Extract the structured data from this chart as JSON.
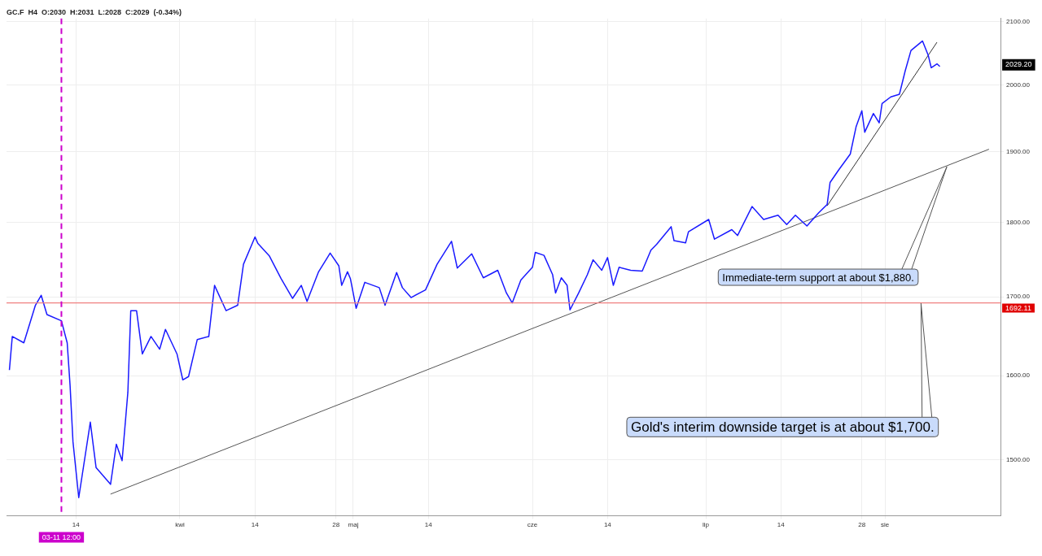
{
  "chart_data": {
    "type": "line",
    "title": "GC.F  H4  O:2030  H:2031  L:2028  C:2029  (-0.34%)",
    "xlim": [
      "--03-02",
      "--08-21"
    ],
    "xticks": [
      {
        "value": "--03-14",
        "label": "14"
      },
      {
        "value": "--04-01",
        "label": "kwi"
      },
      {
        "value": "--04-14",
        "label": "14"
      },
      {
        "value": "--04-28",
        "label": "28"
      },
      {
        "value": "--05-01",
        "label": "maj"
      },
      {
        "value": "--05-14",
        "label": "14"
      },
      {
        "value": "--06-01",
        "label": "cze"
      },
      {
        "value": "--06-14",
        "label": "14"
      },
      {
        "value": "--07-01",
        "label": "lip"
      },
      {
        "value": "--07-14",
        "label": "14"
      },
      {
        "value": "--07-28",
        "label": "28"
      },
      {
        "value": "--08-01",
        "label": "sie"
      }
    ],
    "ylim": [
      1437,
      2105
    ],
    "log": true,
    "yticks": [
      {
        "value": 1500,
        "label": "1500.00"
      },
      {
        "value": 1600,
        "label": "1600.00"
      },
      {
        "value": 1700,
        "label": "1700.00"
      },
      {
        "value": 1800,
        "label": "1800.00"
      },
      {
        "value": 1900,
        "label": "1900.00"
      },
      {
        "value": 2000,
        "label": "2000.00"
      },
      {
        "value": 2100,
        "label": "2100.00"
      }
    ],
    "grid": true,
    "legend": false,
    "marker": "none",
    "line_style": "solid",
    "series": [
      {
        "color": "#1a1aff",
        "x": [
          "--03-02T12:00",
          "--03-03",
          "--03-05",
          "--03-07",
          "--03-08",
          "--03-09",
          "--03-11T12:00",
          "--03-12T12:00",
          "--03-13",
          "--03-13T12:00",
          "--03-14T12:00",
          "--03-16T12:00",
          "--03-17T12:00",
          "--03-20",
          "--03-21",
          "--03-22",
          "--03-23",
          "--03-23T12:00",
          "--03-24T12:00",
          "--03-25T12:00",
          "--03-27",
          "--03-28T12:00",
          "--03-29T12:00",
          "--03-31T12:00",
          "--04-01T12:00",
          "--04-02T12:00",
          "--04-04",
          "--04-06",
          "--04-07",
          "--04-09",
          "--04-11",
          "--04-12",
          "--04-14",
          "--04-14T12:00",
          "--04-16T12:00",
          "--04-18T12:00",
          "--04-20T12:00",
          "--04-22",
          "--04-23",
          "--04-25",
          "--04-27",
          "--04-28T12:00",
          "--04-29",
          "--04-30",
          "--04-30T12:00",
          "--05-01T12:00",
          "--05-03",
          "--05-05T12:00",
          "--05-06T12:00",
          "--05-08T12:00",
          "--05-09T12:00",
          "--05-11",
          "--05-13T12:00",
          "--05-15T12:00",
          "--05-18",
          "--05-19",
          "--05-21T12:00",
          "--05-23T12:00",
          "--05-26",
          "--05-27T12:00",
          "--05-28T12:00",
          "--05-30",
          "--06-01",
          "--06-01T12:00",
          "--06-03",
          "--06-04T12:00",
          "--06-05",
          "--06-06",
          "--06-07",
          "--06-07T12:00",
          "--06-09",
          "--06-10T12:00",
          "--06-11T12:00",
          "--06-13",
          "--06-14",
          "--06-15",
          "--06-16",
          "--06-18",
          "--06-20",
          "--06-21T12:00",
          "--06-22T12:00",
          "--06-25",
          "--06-25T12:00",
          "--06-27T12:00",
          "--06-28",
          "--07-01T12:00",
          "--07-02T12:00",
          "--07-05T12:00",
          "--07-06T12:00",
          "--07-09",
          "--07-11",
          "--07-13T12:00",
          "--07-15",
          "--07-16T12:00",
          "--07-18T12:00",
          "--07-20T12:00",
          "--07-22",
          "--07-22T12:00",
          "--07-24",
          "--07-26",
          "--07-27",
          "--07-28",
          "--07-28T12:00",
          "--07-30",
          "--07-31",
          "--07-31T12:00",
          "--08-02",
          "--08-03T12:00",
          "--08-04T12:00",
          "--08-05T12:00",
          "--08-07T12:00",
          "--08-08T12:00",
          "--08-09",
          "--08-10",
          "--08-10T12:00"
        ],
        "values": [
          1607,
          1649,
          1641,
          1689,
          1702,
          1677,
          1669,
          1641,
          1588,
          1521,
          1457,
          1544,
          1491,
          1472,
          1518,
          1499,
          1580,
          1682,
          1682,
          1627,
          1649,
          1633,
          1658,
          1627,
          1595,
          1599,
          1645,
          1649,
          1715,
          1682,
          1689,
          1743,
          1780,
          1771,
          1754,
          1724,
          1698,
          1715,
          1694,
          1733,
          1758,
          1741,
          1715,
          1733,
          1724,
          1685,
          1719,
          1712,
          1689,
          1732,
          1712,
          1699,
          1709,
          1743,
          1774,
          1738,
          1757,
          1725,
          1735,
          1705,
          1692,
          1722,
          1739,
          1759,
          1755,
          1729,
          1705,
          1725,
          1715,
          1683,
          1705,
          1729,
          1749,
          1735,
          1752,
          1715,
          1739,
          1735,
          1734,
          1762,
          1770,
          1794,
          1775,
          1772,
          1787,
          1804,
          1777,
          1790,
          1782,
          1822,
          1804,
          1810,
          1797,
          1810,
          1795,
          1813,
          1825,
          1856,
          1874,
          1897,
          1937,
          1961,
          1929,
          1957,
          1943,
          1972,
          1982,
          1986,
          2022,
          2054,
          2069,
          2046,
          2027,
          2033,
          2029
        ]
      },
      {
        "type": "line",
        "color": "#555555",
        "x": [
          "--03-20",
          "--08-19"
        ],
        "values": [
          1461,
          1904
        ]
      },
      {
        "type": "line",
        "color": "#333333",
        "x": [
          "--07-22",
          "--08-10"
        ],
        "values": [
          1823,
          2067
        ]
      }
    ],
    "ref_lines": [
      {
        "axis": "y",
        "value": 1692.11,
        "label": "1692.11",
        "color": "#f08080"
      },
      {
        "axis": "x",
        "value": "--03-11T12:00",
        "label": "03-11 12:00",
        "color": "#cc00cc",
        "line_style": "dashed"
      }
    ],
    "annotations": [
      "2029.20",
      "Immediate-term support at about $1,880.",
      "Gold's interim downside target is at about $1,700."
    ]
  }
}
